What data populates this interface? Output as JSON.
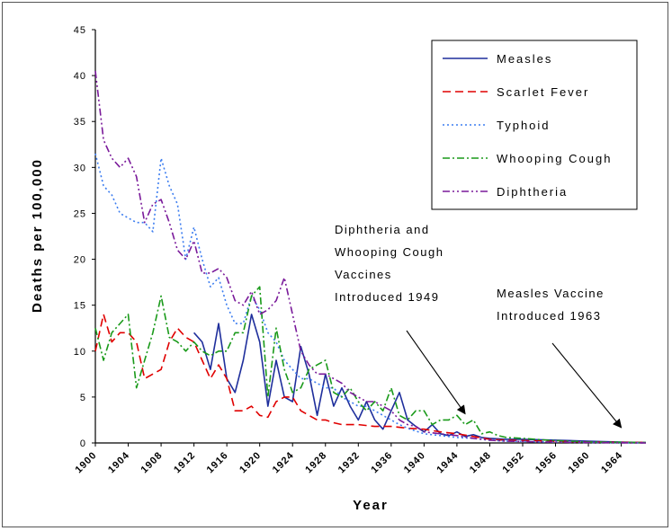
{
  "chart_data": {
    "type": "line",
    "title": "",
    "xlabel": "Year",
    "ylabel": "Deaths per 100,000",
    "xlim": [
      1900,
      1967
    ],
    "ylim": [
      0,
      45
    ],
    "y_ticks": [
      0,
      5,
      10,
      15,
      20,
      25,
      30,
      35,
      40,
      45
    ],
    "x_tick_labels": [
      "1900",
      "1904",
      "1908",
      "1912",
      "1916",
      "1920",
      "1924",
      "1928",
      "1932",
      "1936",
      "1940",
      "1944",
      "1948",
      "1952",
      "1956",
      "1960",
      "1964"
    ],
    "grid": false,
    "legend_position": "top-right",
    "series": [
      {
        "name": "Measles",
        "color": "#1f2f9c",
        "dash": "solid",
        "points": [
          [
            1912,
            12
          ],
          [
            1913,
            11
          ],
          [
            1914,
            8
          ],
          [
            1915,
            13
          ],
          [
            1916,
            7
          ],
          [
            1917,
            5.5
          ],
          [
            1918,
            9
          ],
          [
            1919,
            14
          ],
          [
            1920,
            11
          ],
          [
            1921,
            4
          ],
          [
            1922,
            9
          ],
          [
            1923,
            5
          ],
          [
            1924,
            4.5
          ],
          [
            1925,
            10.5
          ],
          [
            1926,
            7.5
          ],
          [
            1927,
            3
          ],
          [
            1928,
            7.5
          ],
          [
            1929,
            4
          ],
          [
            1930,
            6
          ],
          [
            1931,
            4
          ],
          [
            1932,
            2.5
          ],
          [
            1933,
            4.5
          ],
          [
            1934,
            2.5
          ],
          [
            1935,
            1.5
          ],
          [
            1936,
            3.5
          ],
          [
            1937,
            5.5
          ],
          [
            1938,
            2.5
          ],
          [
            1939,
            1.8
          ],
          [
            1940,
            1.2
          ],
          [
            1941,
            2
          ],
          [
            1942,
            1
          ],
          [
            1943,
            0.8
          ],
          [
            1944,
            1.2
          ],
          [
            1945,
            0.7
          ],
          [
            1946,
            0.9
          ],
          [
            1947,
            0.6
          ],
          [
            1948,
            0.5
          ],
          [
            1950,
            0.4
          ],
          [
            1952,
            0.4
          ],
          [
            1956,
            0.3
          ],
          [
            1960,
            0.2
          ],
          [
            1964,
            0.1
          ],
          [
            1967,
            0.05
          ]
        ]
      },
      {
        "name": "Scarlet Fever",
        "color": "#e00000",
        "dash": "long",
        "points": [
          [
            1900,
            10
          ],
          [
            1901,
            14
          ],
          [
            1902,
            11
          ],
          [
            1903,
            12
          ],
          [
            1904,
            12
          ],
          [
            1905,
            11
          ],
          [
            1906,
            7
          ],
          [
            1907,
            7.5
          ],
          [
            1908,
            8
          ],
          [
            1909,
            11
          ],
          [
            1910,
            12.5
          ],
          [
            1911,
            11.5
          ],
          [
            1912,
            11
          ],
          [
            1913,
            9
          ],
          [
            1914,
            7
          ],
          [
            1915,
            8.5
          ],
          [
            1916,
            7
          ],
          [
            1917,
            3.5
          ],
          [
            1918,
            3.5
          ],
          [
            1919,
            4
          ],
          [
            1920,
            3
          ],
          [
            1921,
            2.8
          ],
          [
            1922,
            4.5
          ],
          [
            1923,
            5
          ],
          [
            1924,
            5
          ],
          [
            1925,
            3.5
          ],
          [
            1926,
            3
          ],
          [
            1927,
            2.5
          ],
          [
            1928,
            2.5
          ],
          [
            1929,
            2.2
          ],
          [
            1930,
            2
          ],
          [
            1932,
            2
          ],
          [
            1934,
            1.8
          ],
          [
            1936,
            1.8
          ],
          [
            1938,
            1.6
          ],
          [
            1940,
            1.5
          ],
          [
            1942,
            1.2
          ],
          [
            1944,
            1
          ],
          [
            1946,
            0.7
          ],
          [
            1948,
            0.4
          ],
          [
            1950,
            0.3
          ],
          [
            1955,
            0.2
          ],
          [
            1960,
            0.1
          ],
          [
            1967,
            0.05
          ]
        ]
      },
      {
        "name": "Typhoid",
        "color": "#3c7df0",
        "dash": "dot",
        "points": [
          [
            1900,
            31.5
          ],
          [
            1901,
            28
          ],
          [
            1902,
            27
          ],
          [
            1903,
            25
          ],
          [
            1904,
            24.5
          ],
          [
            1905,
            24
          ],
          [
            1906,
            24
          ],
          [
            1907,
            23
          ],
          [
            1908,
            31
          ],
          [
            1909,
            28
          ],
          [
            1910,
            26
          ],
          [
            1911,
            20
          ],
          [
            1912,
            23.5
          ],
          [
            1913,
            20
          ],
          [
            1914,
            17
          ],
          [
            1915,
            18
          ],
          [
            1916,
            15
          ],
          [
            1917,
            13
          ],
          [
            1918,
            13
          ],
          [
            1919,
            16
          ],
          [
            1920,
            14.5
          ],
          [
            1921,
            12
          ],
          [
            1922,
            11
          ],
          [
            1923,
            9
          ],
          [
            1924,
            8
          ],
          [
            1925,
            7
          ],
          [
            1926,
            7
          ],
          [
            1927,
            6.5
          ],
          [
            1928,
            6
          ],
          [
            1929,
            6
          ],
          [
            1930,
            5
          ],
          [
            1931,
            4.5
          ],
          [
            1932,
            4
          ],
          [
            1933,
            4
          ],
          [
            1934,
            3.5
          ],
          [
            1935,
            3
          ],
          [
            1936,
            2.5
          ],
          [
            1937,
            2
          ],
          [
            1938,
            1.6
          ],
          [
            1939,
            1.3
          ],
          [
            1940,
            1
          ],
          [
            1942,
            0.8
          ],
          [
            1944,
            0.6
          ],
          [
            1946,
            0.5
          ],
          [
            1948,
            0.3
          ],
          [
            1950,
            0.2
          ],
          [
            1955,
            0.1
          ],
          [
            1960,
            0.05
          ],
          [
            1967,
            0
          ]
        ]
      },
      {
        "name": "Whooping Cough",
        "color": "#1a9a1a",
        "dash": "dashdot",
        "points": [
          [
            1900,
            12.5
          ],
          [
            1901,
            9
          ],
          [
            1902,
            12
          ],
          [
            1903,
            13
          ],
          [
            1904,
            14
          ],
          [
            1905,
            6
          ],
          [
            1906,
            9
          ],
          [
            1907,
            12
          ],
          [
            1908,
            16
          ],
          [
            1909,
            11.5
          ],
          [
            1910,
            11
          ],
          [
            1911,
            10
          ],
          [
            1912,
            11
          ],
          [
            1913,
            10
          ],
          [
            1914,
            9.5
          ],
          [
            1915,
            10
          ],
          [
            1916,
            10
          ],
          [
            1917,
            12
          ],
          [
            1918,
            12
          ],
          [
            1919,
            16
          ],
          [
            1920,
            17
          ],
          [
            1921,
            5
          ],
          [
            1922,
            12.5
          ],
          [
            1923,
            8
          ],
          [
            1924,
            5.5
          ],
          [
            1925,
            6
          ],
          [
            1926,
            8
          ],
          [
            1927,
            8.5
          ],
          [
            1928,
            9
          ],
          [
            1929,
            5.5
          ],
          [
            1930,
            5
          ],
          [
            1931,
            6
          ],
          [
            1932,
            4.5
          ],
          [
            1933,
            3.5
          ],
          [
            1934,
            4.5
          ],
          [
            1935,
            3.5
          ],
          [
            1936,
            6
          ],
          [
            1937,
            3
          ],
          [
            1938,
            2.5
          ],
          [
            1939,
            3.5
          ],
          [
            1940,
            3.5
          ],
          [
            1941,
            2
          ],
          [
            1942,
            2.5
          ],
          [
            1943,
            2.5
          ],
          [
            1944,
            3
          ],
          [
            1945,
            2
          ],
          [
            1946,
            2.5
          ],
          [
            1947,
            1
          ],
          [
            1948,
            1.2
          ],
          [
            1949,
            0.8
          ],
          [
            1950,
            0.6
          ],
          [
            1952,
            0.5
          ],
          [
            1955,
            0.3
          ],
          [
            1960,
            0.1
          ],
          [
            1967,
            0.05
          ]
        ]
      },
      {
        "name": "Diphtheria",
        "color": "#7a1a9a",
        "dash": "dashdotdot",
        "points": [
          [
            1900,
            40.5
          ],
          [
            1901,
            33
          ],
          [
            1902,
            31
          ],
          [
            1903,
            30
          ],
          [
            1904,
            31
          ],
          [
            1905,
            29
          ],
          [
            1906,
            24
          ],
          [
            1907,
            26
          ],
          [
            1908,
            26.5
          ],
          [
            1909,
            24
          ],
          [
            1910,
            21
          ],
          [
            1911,
            20
          ],
          [
            1912,
            22
          ],
          [
            1913,
            18.5
          ],
          [
            1914,
            18.5
          ],
          [
            1915,
            19
          ],
          [
            1916,
            18
          ],
          [
            1917,
            15.5
          ],
          [
            1918,
            15
          ],
          [
            1919,
            16.5
          ],
          [
            1920,
            14
          ],
          [
            1921,
            14.5
          ],
          [
            1922,
            15.5
          ],
          [
            1923,
            18
          ],
          [
            1924,
            14
          ],
          [
            1925,
            10
          ],
          [
            1926,
            8.5
          ],
          [
            1927,
            7.5
          ],
          [
            1928,
            7.5
          ],
          [
            1929,
            7
          ],
          [
            1930,
            6.5
          ],
          [
            1931,
            5.5
          ],
          [
            1932,
            5
          ],
          [
            1933,
            4.5
          ],
          [
            1934,
            4.5
          ],
          [
            1935,
            4
          ],
          [
            1936,
            3.5
          ],
          [
            1937,
            2.5
          ],
          [
            1938,
            2
          ],
          [
            1939,
            1.8
          ],
          [
            1940,
            1.2
          ],
          [
            1942,
            1
          ],
          [
            1944,
            0.8
          ],
          [
            1946,
            0.5
          ],
          [
            1948,
            0.3
          ],
          [
            1950,
            0.2
          ],
          [
            1955,
            0.1
          ],
          [
            1960,
            0.05
          ],
          [
            1967,
            0
          ]
        ]
      }
    ],
    "annotations": [
      {
        "lines": [
          "Diphtheria and",
          "Whooping Cough",
          "Vaccines",
          "Introduced 1949"
        ],
        "arrow_to": [
          1945,
          2
        ]
      },
      {
        "lines": [
          "Measles Vaccine",
          "Introduced 1963"
        ],
        "arrow_to": [
          1964,
          0.5
        ]
      }
    ]
  }
}
